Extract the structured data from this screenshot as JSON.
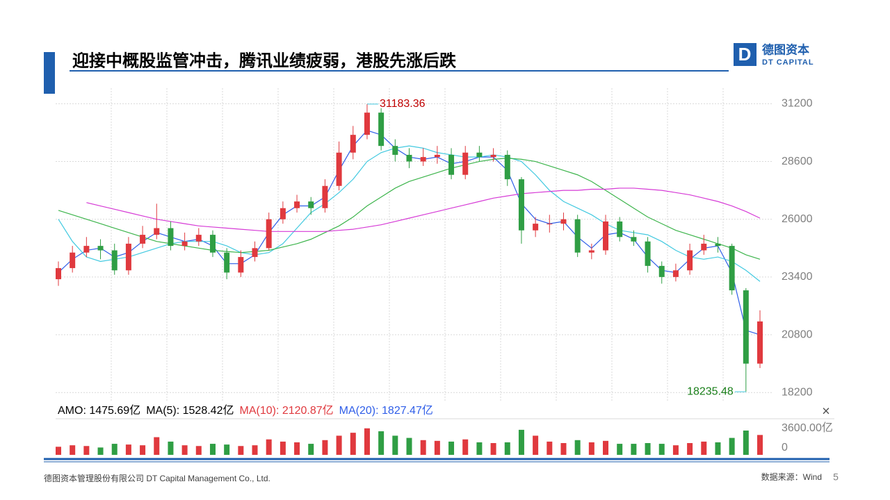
{
  "header": {
    "title": "迎接中概股监管冲击，腾讯业绩疲弱，港股先涨后跌",
    "logo_mark": "D",
    "logo_cn": "德图资本",
    "logo_en": "DT CAPITAL"
  },
  "chart_data": {
    "type": "candlestick",
    "open": [
      23300,
      23800,
      24500,
      24800,
      24600,
      23700,
      24900,
      25300,
      25600,
      24800,
      25000,
      25300,
      24500,
      23600,
      24300,
      24700,
      26000,
      26500,
      26800,
      26500,
      27500,
      29000,
      29800,
      30800,
      29300,
      28900,
      28600,
      28800,
      28900,
      28000,
      29000,
      28800,
      28900,
      27800,
      25500,
      25800,
      25800,
      26000,
      24500,
      24600,
      25900,
      25200,
      25000,
      23900,
      23400,
      23700,
      24600,
      24900,
      24800,
      22800,
      19500
    ],
    "high": [
      24100,
      24800,
      25200,
      25100,
      24900,
      25200,
      25700,
      26700,
      25900,
      25400,
      25600,
      25500,
      24700,
      24600,
      25000,
      26300,
      26800,
      27100,
      27000,
      27800,
      29500,
      30200,
      31183.36,
      31000,
      29600,
      29200,
      29200,
      29300,
      29200,
      29300,
      29300,
      29200,
      29100,
      27900,
      26100,
      26200,
      26300,
      26200,
      24900,
      26200,
      26100,
      25500,
      25200,
      24100,
      24000,
      24900,
      25300,
      25200,
      24900,
      22900,
      21900
    ],
    "low": [
      23000,
      23600,
      24300,
      24200,
      23500,
      23500,
      24700,
      25100,
      24600,
      24600,
      24800,
      24300,
      23300,
      23400,
      24100,
      24600,
      25800,
      26300,
      26200,
      26300,
      27300,
      28700,
      29600,
      29100,
      28600,
      28300,
      28400,
      28500,
      27800,
      27800,
      28600,
      28600,
      27500,
      24900,
      25200,
      25400,
      25500,
      24300,
      24200,
      24400,
      25000,
      24800,
      23600,
      23100,
      23200,
      23500,
      24400,
      24500,
      22600,
      18235.48,
      19300
    ],
    "close": [
      23800,
      24500,
      24800,
      24600,
      23700,
      24900,
      25300,
      25600,
      24800,
      25000,
      25300,
      24500,
      23600,
      24300,
      24700,
      26000,
      26500,
      26800,
      26500,
      27500,
      29000,
      29800,
      30800,
      29300,
      28900,
      28600,
      28800,
      28900,
      28000,
      29000,
      28800,
      28900,
      27800,
      25500,
      25800,
      25800,
      26000,
      24500,
      24600,
      25900,
      25200,
      25000,
      23900,
      23400,
      23700,
      24600,
      24900,
      24800,
      22800,
      19500,
      21400
    ],
    "up_color": "#e0393e",
    "down_color": "#2f9e44",
    "series": [
      {
        "color": "#2f5ee8",
        "values": [
          23600,
          24200,
          24600,
          24700,
          24300,
          24500,
          25000,
          25400,
          25200,
          25000,
          25100,
          24800,
          24000,
          24000,
          24400,
          25400,
          26200,
          26600,
          26600,
          27000,
          28200,
          29300,
          30000,
          29800,
          29200,
          28800,
          28700,
          28800,
          28500,
          28600,
          28800,
          28800,
          28200,
          26700,
          26000,
          25800,
          25900,
          25200,
          24700,
          25300,
          25400,
          25100,
          24300,
          23700,
          23600,
          24200,
          24700,
          24800,
          23600,
          21000,
          20800
        ]
      },
      {
        "color": "#41c9e0",
        "values": [
          26000,
          25000,
          24300,
          24100,
          24200,
          24300,
          24500,
          24700,
          24900,
          25000,
          25000,
          25000,
          24800,
          24500,
          24400,
          24500,
          24900,
          25600,
          26300,
          26700,
          27200,
          27800,
          28600,
          29000,
          29200,
          29300,
          29200,
          29000,
          28900,
          28800,
          28800,
          28900,
          28800,
          28600,
          28000,
          27300,
          26800,
          26500,
          26200,
          25800,
          25500,
          25400,
          25300,
          25000,
          24600,
          24300,
          24200,
          24300,
          24100,
          23700,
          23200
        ]
      },
      {
        "color": "#3cb44b",
        "values": [
          26400,
          26200,
          26000,
          25800,
          25600,
          25400,
          25200,
          25000,
          24900,
          24800,
          24700,
          24600,
          24550,
          24500,
          24550,
          24600,
          24750,
          24900,
          25100,
          25400,
          25700,
          26100,
          26600,
          27000,
          27400,
          27700,
          27900,
          28100,
          28300,
          28450,
          28600,
          28700,
          28750,
          28700,
          28600,
          28400,
          28200,
          28000,
          27700,
          27300,
          26900,
          26500,
          26100,
          25800,
          25500,
          25300,
          25100,
          24900,
          24700,
          24400,
          24200
        ]
      },
      {
        "color": "#d63ad6",
        "values": [
          null,
          null,
          26750,
          26600,
          26450,
          26300,
          26150,
          26000,
          25900,
          25800,
          25700,
          25650,
          25600,
          25550,
          25500,
          25450,
          25450,
          25450,
          25450,
          25450,
          25500,
          25550,
          25650,
          25750,
          25900,
          26050,
          26200,
          26350,
          26500,
          26650,
          26800,
          26950,
          27050,
          27150,
          27200,
          27250,
          27300,
          27300,
          27350,
          27350,
          27400,
          27400,
          27350,
          27300,
          27200,
          27100,
          26950,
          26800,
          26600,
          26350,
          26050
        ]
      }
    ],
    "ylim": [
      17800,
      31900
    ],
    "yticks": [
      31200,
      28600,
      26000,
      23400,
      20800,
      18200
    ],
    "grid": true,
    "annotations": [
      {
        "color": "#c00000"
      },
      {
        "color": "#1a7f1a"
      }
    ],
    "volume": {
      "legend": [
        {
          "text": "AMO: 1475.69亿",
          "color": "#000000"
        },
        {
          "text": "MA(5): 1528.42亿",
          "color": "#000000"
        },
        {
          "text": "MA(10): 2120.87亿",
          "color": "#e0393e"
        },
        {
          "text": "MA(20): 1827.47亿",
          "color": "#2f5ee8"
        }
      ],
      "values": [
        1100,
        1300,
        1200,
        1000,
        1500,
        1400,
        1300,
        2400,
        1800,
        1300,
        1200,
        1500,
        1400,
        1200,
        1300,
        2100,
        1800,
        1700,
        1500,
        2000,
        2600,
        3000,
        3600,
        3200,
        2600,
        2300,
        2000,
        1900,
        1800,
        2100,
        1700,
        1600,
        1700,
        3400,
        2600,
        1800,
        1600,
        2000,
        1700,
        1900,
        1500,
        1500,
        1600,
        1500,
        1300,
        1600,
        1800,
        1700,
        2300,
        3300,
        2700
      ],
      "ylim": [
        0,
        4900
      ],
      "yticks": [
        {
          "value": 3600,
          "label": "3600.00亿"
        },
        0
      ]
    }
  },
  "footer": {
    "company": "德图资本管理股份有限公司  DT Capital Management Co., Ltd.",
    "source": "数据来源：Wind",
    "page": "5"
  }
}
